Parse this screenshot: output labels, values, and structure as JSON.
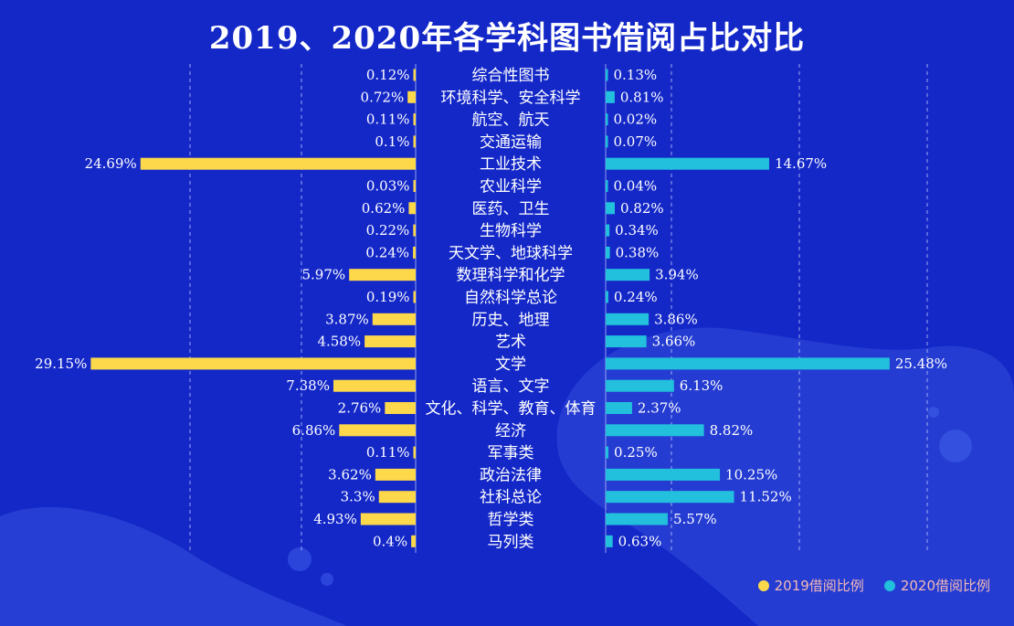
{
  "chart_data": {
    "type": "bar",
    "orientation": "horizontal-butterfly",
    "title": "2019、2020年各学科图书借阅占比对比",
    "categories": [
      "综合性图书",
      "环境科学、安全科学",
      "航空、航天",
      "交通运输",
      "工业技术",
      "农业科学",
      "医药、卫生",
      "生物科学",
      "天文学、地球科学",
      "数理科学和化学",
      "自然科学总论",
      "历史、地理",
      "艺术",
      "文学",
      "语言、文字",
      "文化、科学、教育、体育",
      "经济",
      "军事类",
      "政治法律",
      "社科总论",
      "哲学类",
      "马列类"
    ],
    "series": [
      {
        "name": "2019借阅比例",
        "color": "#fcd84a",
        "side": "left",
        "values": [
          0.12,
          0.72,
          0.11,
          0.1,
          24.69,
          0.03,
          0.62,
          0.22,
          0.24,
          5.97,
          0.19,
          3.87,
          4.58,
          29.15,
          7.38,
          2.76,
          6.86,
          0.11,
          3.62,
          3.3,
          4.93,
          0.4
        ],
        "labels": [
          "0.12%",
          "0.72%",
          "0.11%",
          "0.1%",
          "24.69%",
          "0.03%",
          "0.62%",
          "0.22%",
          "0.24%",
          "5.97%",
          "0.19%",
          "3.87%",
          "4.58%",
          "29.15%",
          "7.38%",
          "2.76%",
          "6.86%",
          "0.11%",
          "3.62%",
          "3.3%",
          "4.93%",
          "0.4%"
        ]
      },
      {
        "name": "2020借阅比例",
        "color": "#22c0dc",
        "side": "right",
        "values": [
          0.13,
          0.81,
          0.02,
          0.07,
          14.67,
          0.04,
          0.82,
          0.34,
          0.38,
          3.94,
          0.24,
          3.86,
          3.66,
          25.48,
          6.13,
          2.37,
          8.82,
          0.25,
          10.25,
          11.52,
          5.57,
          0.63
        ],
        "labels": [
          "0.13%",
          "0.81%",
          "0.02%",
          "0.07%",
          "14.67%",
          "0.04%",
          "0.82%",
          "0.34%",
          "0.38%",
          "3.94%",
          "0.24%",
          "3.86%",
          "3.66%",
          "25.48%",
          "6.13%",
          "2.37%",
          "8.82%",
          "0.25%",
          "10.25%",
          "11.52%",
          "5.57%",
          "0.63%"
        ]
      }
    ],
    "xlim_left": [
      0,
      30
    ],
    "xlim_right": [
      0,
      30
    ],
    "grid": true,
    "legend": "bottom-right"
  },
  "colors": {
    "background": "#1428c8",
    "grid": "#c8d0ff",
    "label": "#ffffff",
    "legend_text": "#f4b8b8"
  }
}
